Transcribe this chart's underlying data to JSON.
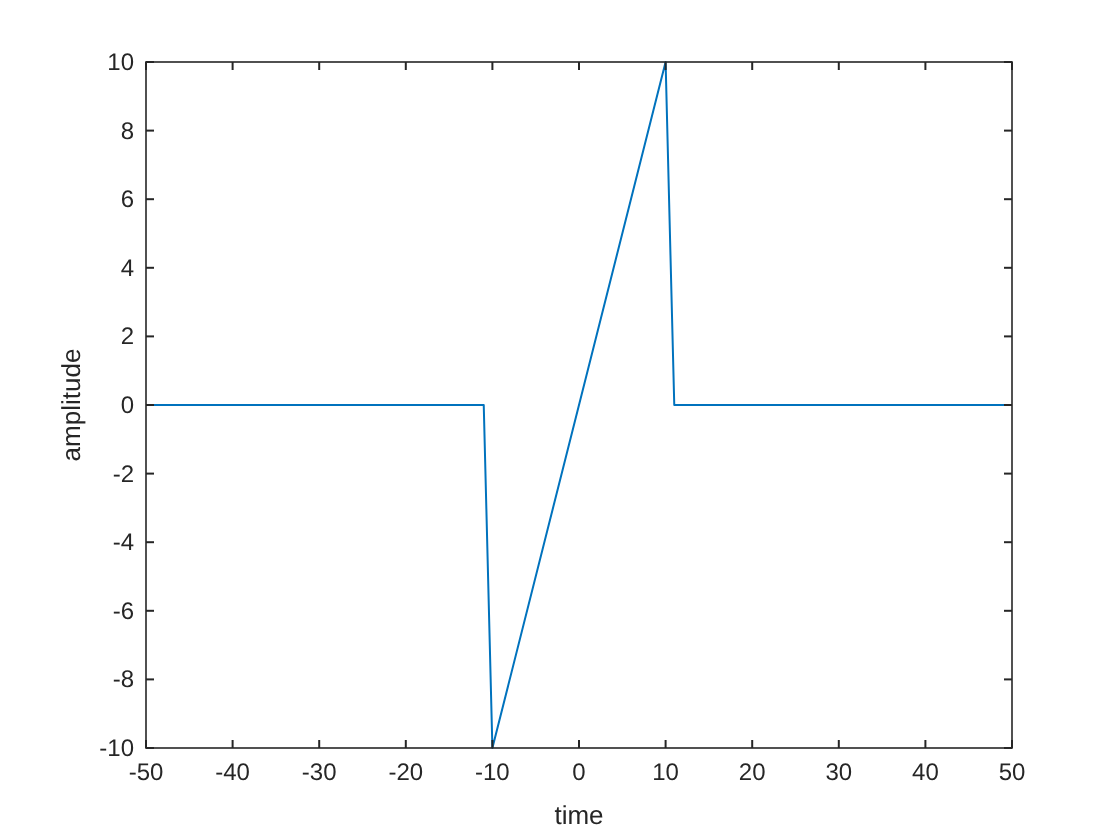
{
  "chart_data": {
    "type": "line",
    "xlabel": "time",
    "ylabel": "amplitude",
    "x": [
      -50,
      -11,
      -10,
      10,
      11,
      50
    ],
    "series": [
      {
        "color": "#0072bd",
        "values": [
          0,
          0,
          -10,
          10,
          0,
          0
        ]
      }
    ],
    "xlim": [
      -50,
      50
    ],
    "xticks": [
      -50,
      -40,
      -30,
      -20,
      -10,
      0,
      10,
      20,
      30,
      40,
      50
    ],
    "ylim": [
      -10,
      10
    ],
    "yticks": [
      -10,
      -8,
      -6,
      -4,
      -2,
      0,
      2,
      4,
      6,
      8,
      10
    ],
    "grid": false,
    "marker": "none",
    "line_style": "solid"
  }
}
